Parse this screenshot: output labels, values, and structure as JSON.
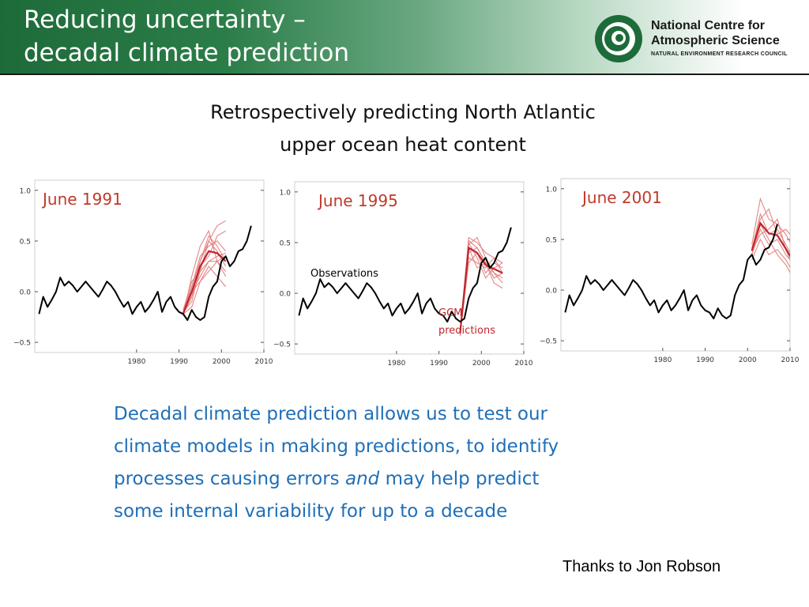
{
  "header": {
    "title_line1": "Reducing uncertainty –",
    "title_line2": "decadal climate prediction",
    "logo_name_line1": "National Centre for",
    "logo_name_line2": "Atmospheric Science",
    "logo_sub": "NATURAL ENVIRONMENT RESEARCH COUNCIL"
  },
  "subtitle": {
    "line1": "Retrospectively predicting North Atlantic",
    "line2": "upper ocean heat content"
  },
  "annotations": {
    "observations": "Observations",
    "gcm_line1": "GCM",
    "gcm_line2": "predictions"
  },
  "body": {
    "line1": "Decadal climate prediction allows us to test our",
    "line2": "climate models in making predictions, to identify",
    "line3_before": "processes causing errors ",
    "line3_em": "and",
    "line3_after": " may help predict",
    "line4": "some internal variability for up to a decade"
  },
  "credit": "Thanks to Jon Robson",
  "colors": {
    "header_green": "#1e6b3a",
    "observations": "#000000",
    "predictions": "#c0262d",
    "predictions_light": "#e07a7a",
    "label_red": "#c0392b",
    "body_blue": "#1f6fb8"
  },
  "chart_data": [
    {
      "type": "line",
      "title": "June 1991",
      "xlim": [
        1956,
        2010
      ],
      "ylim": [
        -0.6,
        1.1
      ],
      "xticks": [
        1980,
        1990,
        2000,
        2010
      ],
      "yticks": [
        -0.5,
        0.0,
        0.5,
        1.0
      ],
      "ytick_labels": [
        "−0.5",
        "0.0",
        "0.5",
        "1.0"
      ],
      "series": [
        {
          "role": "observations",
          "x": [
            1957,
            1958,
            1959,
            1960,
            1961,
            1962,
            1963,
            1964,
            1965,
            1966,
            1967,
            1968,
            1969,
            1970,
            1971,
            1972,
            1973,
            1974,
            1975,
            1976,
            1977,
            1978,
            1979,
            1980,
            1981,
            1982,
            1983,
            1984,
            1985,
            1986,
            1987,
            1988,
            1989,
            1990,
            1991,
            1992,
            1993,
            1994,
            1995,
            1996,
            1997,
            1998,
            1999,
            2000,
            2001,
            2002,
            2003,
            2004,
            2005,
            2006,
            2007
          ],
          "y": [
            -0.22,
            -0.05,
            -0.15,
            -0.08,
            0.0,
            0.14,
            0.06,
            0.1,
            0.06,
            0.0,
            0.05,
            0.1,
            0.05,
            0.0,
            -0.05,
            0.02,
            0.1,
            0.06,
            0.0,
            -0.08,
            -0.15,
            -0.1,
            -0.22,
            -0.15,
            -0.1,
            -0.2,
            -0.15,
            -0.08,
            0.0,
            -0.2,
            -0.1,
            -0.05,
            -0.15,
            -0.2,
            -0.22,
            -0.28,
            -0.18,
            -0.25,
            -0.28,
            -0.25,
            -0.05,
            0.05,
            0.1,
            0.3,
            0.35,
            0.25,
            0.3,
            0.4,
            0.42,
            0.5,
            0.65
          ]
        },
        {
          "role": "prediction",
          "x": [
            1991,
            1993,
            1995,
            1997,
            1999,
            2001
          ],
          "y": [
            -0.2,
            0.0,
            0.15,
            0.3,
            0.35,
            0.38
          ]
        },
        {
          "role": "prediction",
          "x": [
            1991,
            1993,
            1995,
            1997,
            1999,
            2001
          ],
          "y": [
            -0.22,
            -0.05,
            0.3,
            0.55,
            0.45,
            0.3
          ]
        },
        {
          "role": "prediction",
          "x": [
            1991,
            1993,
            1995,
            1997,
            1999,
            2001
          ],
          "y": [
            -0.18,
            0.1,
            0.2,
            0.5,
            0.4,
            0.25
          ]
        },
        {
          "role": "prediction",
          "x": [
            1991,
            1993,
            1995,
            1997,
            1999,
            2001
          ],
          "y": [
            -0.24,
            0.15,
            0.45,
            0.6,
            0.3,
            0.2
          ]
        },
        {
          "role": "prediction",
          "x": [
            1991,
            1993,
            1995,
            1997,
            1999,
            2001
          ],
          "y": [
            -0.2,
            -0.1,
            0.25,
            0.35,
            0.55,
            0.6
          ]
        },
        {
          "role": "prediction",
          "x": [
            1991,
            1993,
            1995,
            1997,
            1999,
            2001
          ],
          "y": [
            -0.2,
            0.0,
            0.1,
            0.2,
            0.3,
            0.15
          ]
        },
        {
          "role": "prediction",
          "x": [
            1991,
            1993,
            1995,
            1997,
            1999,
            2001
          ],
          "y": [
            -0.22,
            -0.15,
            0.1,
            0.25,
            0.15,
            0.05
          ]
        },
        {
          "role": "prediction",
          "x": [
            1991,
            1993,
            1995,
            1997,
            1999,
            2001
          ],
          "y": [
            -0.18,
            0.05,
            0.35,
            0.45,
            0.5,
            0.4
          ]
        },
        {
          "role": "prediction",
          "x": [
            1991,
            1993,
            1995,
            1997,
            1999,
            2001
          ],
          "y": [
            -0.22,
            -0.05,
            0.2,
            0.3,
            0.3,
            0.35
          ]
        },
        {
          "role": "prediction",
          "x": [
            1991,
            1993,
            1995,
            1997,
            1999,
            2001
          ],
          "y": [
            -0.24,
            0.05,
            0.3,
            0.5,
            0.65,
            0.7
          ]
        },
        {
          "role": "prediction-mean",
          "x": [
            1991,
            1993,
            1995,
            1997,
            1999,
            2001
          ],
          "y": [
            -0.21,
            0.0,
            0.25,
            0.4,
            0.38,
            0.3
          ]
        }
      ]
    },
    {
      "type": "line",
      "title": "June 1995",
      "xlim": [
        1956,
        2010
      ],
      "ylim": [
        -0.6,
        1.1
      ],
      "xticks": [
        1980,
        1990,
        2000,
        2010
      ],
      "yticks": [
        -0.5,
        0.0,
        0.5,
        1.0
      ],
      "ytick_labels": [
        "−0.5",
        "0.0",
        "0.5",
        "1.0"
      ],
      "series": [
        {
          "role": "observations",
          "x": [
            1957,
            1958,
            1959,
            1960,
            1961,
            1962,
            1963,
            1964,
            1965,
            1966,
            1967,
            1968,
            1969,
            1970,
            1971,
            1972,
            1973,
            1974,
            1975,
            1976,
            1977,
            1978,
            1979,
            1980,
            1981,
            1982,
            1983,
            1984,
            1985,
            1986,
            1987,
            1988,
            1989,
            1990,
            1991,
            1992,
            1993,
            1994,
            1995,
            1996,
            1997,
            1998,
            1999,
            2000,
            2001,
            2002,
            2003,
            2004,
            2005,
            2006,
            2007
          ],
          "y": [
            -0.22,
            -0.05,
            -0.15,
            -0.08,
            0.0,
            0.14,
            0.06,
            0.1,
            0.06,
            0.0,
            0.05,
            0.1,
            0.05,
            0.0,
            -0.05,
            0.02,
            0.1,
            0.06,
            0.0,
            -0.08,
            -0.15,
            -0.1,
            -0.22,
            -0.15,
            -0.1,
            -0.2,
            -0.15,
            -0.08,
            0.0,
            -0.2,
            -0.1,
            -0.05,
            -0.15,
            -0.2,
            -0.22,
            -0.28,
            -0.18,
            -0.25,
            -0.28,
            -0.25,
            -0.05,
            0.05,
            0.1,
            0.3,
            0.35,
            0.25,
            0.3,
            0.4,
            0.42,
            0.5,
            0.65
          ]
        },
        {
          "role": "prediction",
          "x": [
            1995,
            1997,
            1999,
            2001,
            2003,
            2005
          ],
          "y": [
            -0.4,
            0.4,
            0.45,
            0.3,
            0.2,
            0.1
          ]
        },
        {
          "role": "prediction",
          "x": [
            1995,
            1997,
            1999,
            2001,
            2003,
            2005
          ],
          "y": [
            -0.38,
            0.5,
            0.35,
            0.15,
            0.25,
            0.3
          ]
        },
        {
          "role": "prediction",
          "x": [
            1995,
            1997,
            1999,
            2001,
            2003,
            2005
          ],
          "y": [
            -0.42,
            0.55,
            0.5,
            0.4,
            0.35,
            0.2
          ]
        },
        {
          "role": "prediction",
          "x": [
            1995,
            1997,
            1999,
            2001,
            2003,
            2005
          ],
          "y": [
            -0.36,
            0.45,
            0.25,
            0.3,
            0.1,
            0.05
          ]
        },
        {
          "role": "prediction",
          "x": [
            1995,
            1997,
            1999,
            2001,
            2003,
            2005
          ],
          "y": [
            -0.4,
            0.3,
            0.4,
            0.2,
            0.3,
            0.25
          ]
        },
        {
          "role": "prediction",
          "x": [
            1995,
            1997,
            1999,
            2001,
            2003,
            2005
          ],
          "y": [
            -0.38,
            0.48,
            0.55,
            0.35,
            0.2,
            0.15
          ]
        },
        {
          "role": "prediction",
          "x": [
            1995,
            1997,
            1999,
            2001,
            2003,
            2005
          ],
          "y": [
            -0.41,
            0.35,
            0.3,
            0.25,
            0.35,
            0.3
          ]
        },
        {
          "role": "prediction",
          "x": [
            1995,
            1997,
            1999,
            2001,
            2003,
            2005
          ],
          "y": [
            -0.37,
            0.52,
            0.45,
            0.3,
            0.15,
            0.2
          ]
        },
        {
          "role": "prediction-mean",
          "x": [
            1995,
            1997,
            1999,
            2001,
            2003,
            2005
          ],
          "y": [
            -0.39,
            0.45,
            0.4,
            0.28,
            0.24,
            0.2
          ]
        }
      ]
    },
    {
      "type": "line",
      "title": "June 2001",
      "xlim": [
        1956,
        2010
      ],
      "ylim": [
        -0.6,
        1.1
      ],
      "xticks": [
        1980,
        1990,
        2000,
        2010
      ],
      "yticks": [
        -0.5,
        0.0,
        0.5,
        1.0
      ],
      "ytick_labels": [
        "−0.5",
        "0.0",
        "0.5",
        "1.0"
      ],
      "series": [
        {
          "role": "observations",
          "x": [
            1957,
            1958,
            1959,
            1960,
            1961,
            1962,
            1963,
            1964,
            1965,
            1966,
            1967,
            1968,
            1969,
            1970,
            1971,
            1972,
            1973,
            1974,
            1975,
            1976,
            1977,
            1978,
            1979,
            1980,
            1981,
            1982,
            1983,
            1984,
            1985,
            1986,
            1987,
            1988,
            1989,
            1990,
            1991,
            1992,
            1993,
            1994,
            1995,
            1996,
            1997,
            1998,
            1999,
            2000,
            2001,
            2002,
            2003,
            2004,
            2005,
            2006,
            2007
          ],
          "y": [
            -0.22,
            -0.05,
            -0.15,
            -0.08,
            0.0,
            0.14,
            0.06,
            0.1,
            0.06,
            0.0,
            0.05,
            0.1,
            0.05,
            0.0,
            -0.05,
            0.02,
            0.1,
            0.06,
            0.0,
            -0.08,
            -0.15,
            -0.1,
            -0.22,
            -0.15,
            -0.1,
            -0.2,
            -0.15,
            -0.08,
            0.0,
            -0.2,
            -0.1,
            -0.05,
            -0.15,
            -0.2,
            -0.22,
            -0.28,
            -0.18,
            -0.25,
            -0.28,
            -0.25,
            -0.05,
            0.05,
            0.1,
            0.3,
            0.35,
            0.25,
            0.3,
            0.4,
            0.42,
            0.5,
            0.65
          ]
        },
        {
          "role": "prediction",
          "x": [
            2001,
            2003,
            2005,
            2007,
            2009,
            2011
          ],
          "y": [
            0.4,
            0.75,
            0.55,
            0.6,
            0.45,
            0.3
          ]
        },
        {
          "role": "prediction",
          "x": [
            2001,
            2003,
            2005,
            2007,
            2009,
            2011
          ],
          "y": [
            0.35,
            0.6,
            0.45,
            0.5,
            0.35,
            0.25
          ]
        },
        {
          "role": "prediction",
          "x": [
            2001,
            2003,
            2005,
            2007,
            2009,
            2011
          ],
          "y": [
            0.45,
            0.9,
            0.7,
            0.65,
            0.55,
            0.4
          ]
        },
        {
          "role": "prediction",
          "x": [
            2001,
            2003,
            2005,
            2007,
            2009,
            2011
          ],
          "y": [
            0.3,
            0.5,
            0.35,
            0.4,
            0.3,
            0.15
          ]
        },
        {
          "role": "prediction",
          "x": [
            2001,
            2003,
            2005,
            2007,
            2009,
            2011
          ],
          "y": [
            0.4,
            0.7,
            0.8,
            0.55,
            0.6,
            0.5
          ]
        },
        {
          "role": "prediction",
          "x": [
            2001,
            2003,
            2005,
            2007,
            2009,
            2011
          ],
          "y": [
            0.38,
            0.55,
            0.6,
            0.7,
            0.4,
            0.2
          ]
        },
        {
          "role": "prediction",
          "x": [
            2001,
            2003,
            2005,
            2007,
            2009,
            2011
          ],
          "y": [
            0.42,
            0.65,
            0.5,
            0.35,
            0.25,
            0.1
          ]
        },
        {
          "role": "prediction-mean",
          "x": [
            2001,
            2003,
            2005,
            2007,
            2009,
            2011
          ],
          "y": [
            0.39,
            0.66,
            0.56,
            0.54,
            0.41,
            0.27
          ]
        }
      ]
    }
  ]
}
